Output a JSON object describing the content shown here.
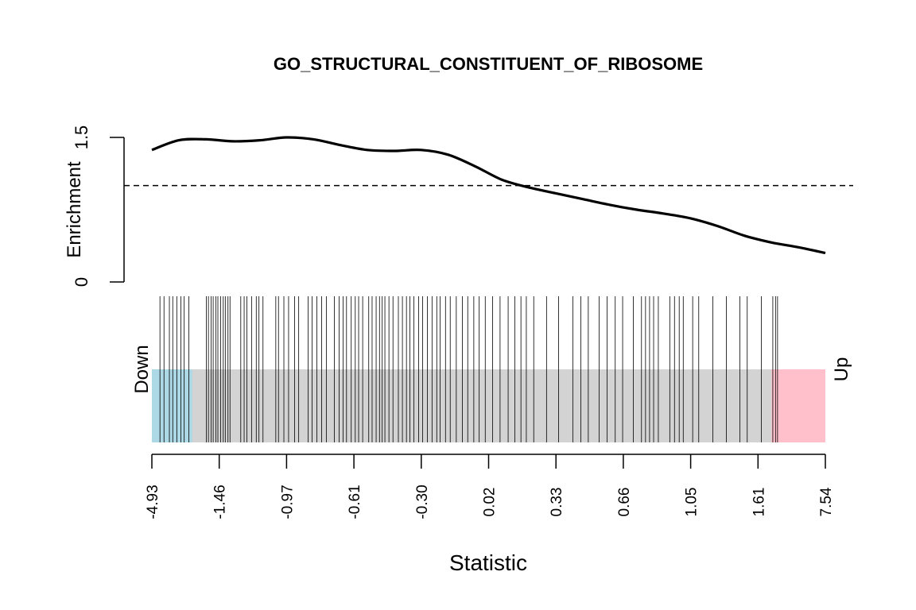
{
  "chart_data": {
    "type": "line",
    "title": "GO_STRUCTURAL_CONSTITUENT_OF_RIBOSOME",
    "xlabel": "Statistic",
    "ylabel": "Enrichment",
    "y_ticks": [
      "0",
      "1.5"
    ],
    "ylim": [
      0,
      1.5
    ],
    "reference_line": 1.0,
    "x_tick_labels": [
      "-4.93",
      "-1.46",
      "-0.97",
      "-0.61",
      "-0.30",
      "0.02",
      "0.33",
      "0.66",
      "1.05",
      "1.61",
      "7.54"
    ],
    "down_label": "Down",
    "up_label": "Up",
    "down_region_end_rank": 0.06,
    "up_region_start_rank": 0.92,
    "series": [
      {
        "x": [
          0,
          0.04,
          0.08,
          0.12,
          0.16,
          0.2,
          0.24,
          0.28,
          0.32,
          0.36,
          0.4,
          0.44,
          0.48,
          0.52,
          0.56,
          0.6,
          0.64,
          0.68,
          0.72,
          0.76,
          0.8,
          0.84,
          0.88,
          0.92,
          0.96,
          1.0
        ],
        "y": [
          1.37,
          1.47,
          1.48,
          1.46,
          1.47,
          1.5,
          1.48,
          1.42,
          1.37,
          1.36,
          1.37,
          1.32,
          1.2,
          1.06,
          0.98,
          0.92,
          0.86,
          0.8,
          0.75,
          0.71,
          0.66,
          0.58,
          0.48,
          0.41,
          0.36,
          0.3
        ]
      }
    ],
    "barcode_ranks": [
      0.012,
      0.018,
      0.026,
      0.031,
      0.037,
      0.043,
      0.048,
      0.055,
      0.081,
      0.084,
      0.088,
      0.091,
      0.095,
      0.098,
      0.102,
      0.106,
      0.109,
      0.113,
      0.116,
      0.132,
      0.137,
      0.141,
      0.148,
      0.155,
      0.159,
      0.165,
      0.184,
      0.188,
      0.196,
      0.203,
      0.212,
      0.218,
      0.232,
      0.238,
      0.245,
      0.252,
      0.259,
      0.271,
      0.278,
      0.284,
      0.289,
      0.296,
      0.302,
      0.307,
      0.313,
      0.322,
      0.327,
      0.333,
      0.338,
      0.342,
      0.346,
      0.352,
      0.358,
      0.366,
      0.372,
      0.378,
      0.383,
      0.389,
      0.396,
      0.402,
      0.409,
      0.416,
      0.423,
      0.428,
      0.436,
      0.443,
      0.452,
      0.461,
      0.469,
      0.478,
      0.486,
      0.495,
      0.506,
      0.517,
      0.529,
      0.539,
      0.548,
      0.556,
      0.567,
      0.586,
      0.604,
      0.625,
      0.637,
      0.648,
      0.664,
      0.676,
      0.688,
      0.699,
      0.715,
      0.727,
      0.733,
      0.739,
      0.745,
      0.752,
      0.769,
      0.776,
      0.783,
      0.789,
      0.803,
      0.812,
      0.833,
      0.853,
      0.873,
      0.884,
      0.905,
      0.922,
      0.926,
      0.929
    ]
  }
}
